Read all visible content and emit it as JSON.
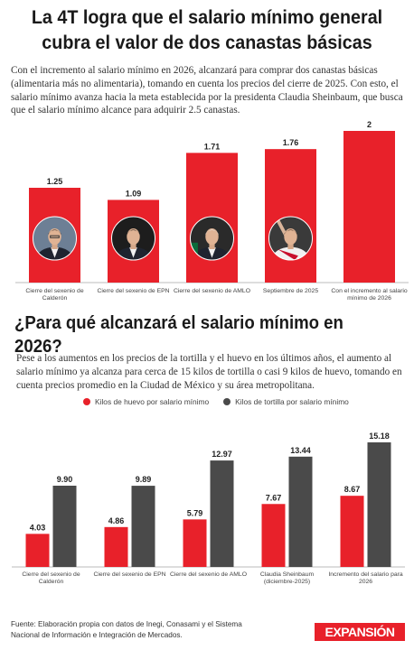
{
  "header": {
    "title_line1": "La 4T logra que el salario mínimo general",
    "title_line2": "cubra el valor de dos canastas básicas",
    "intro": "Con el incremento al salario mínimo en 2026, alcanzará para comprar dos canastas básicas (alimentaria más no alimentaria), tomando en cuenta los precios del cierre de 2025. Con esto, el salario mínimo avanza hacia la meta establecida por la presidenta Claudia Sheinbaum, que busca que el salario mínimo alcance para adquirir 2.5 canastas."
  },
  "section2": {
    "title": "¿Para qué alcanzará el salario mínimo en 2026?",
    "intro": "Pese a los aumentos en los precios de la tortilla y el huevo en los últimos años, el aumento al salario mínimo ya alcanza para cerca de 15 kilos de tortilla o casi 9 kilos de huevo, tomando en cuenta precios promedio en la Ciudad de México y su área metropolitana."
  },
  "footer": {
    "source_line1": "Fuente: Elaboración propia con datos de Inegi, Conasami y el Sistema",
    "source_line2": "Nacional de Información e Integración de Mercados.",
    "logo": "EXPANSIÓN"
  },
  "colors": {
    "red": "#e8212a",
    "dark": "#4a4a4a",
    "axis": "#bbbbbb"
  },
  "chart_data": [
    {
      "type": "bar",
      "title": "",
      "categories": [
        [
          "Cierre del sexenio de",
          "Calderón"
        ],
        [
          "Cierre del sexenio de EPN"
        ],
        [
          "Cierre del sexenio de AMLO"
        ],
        [
          "Septiembre de 2025"
        ],
        [
          "Con el incremento al salario",
          "mínimo de 2026"
        ]
      ],
      "values": [
        1.25,
        1.09,
        1.71,
        1.76,
        2
      ],
      "value_labels": [
        "1.25",
        "1.09",
        "1.71",
        "1.76",
        "2"
      ],
      "portraits": [
        "portrait-calderon",
        "portrait-epn",
        "portrait-amlo",
        "portrait-sheinbaum",
        null
      ],
      "ylim": [
        0,
        2
      ],
      "grid": false,
      "color": "#e8212a"
    },
    {
      "type": "bar",
      "title": "",
      "categories": [
        [
          "Cierre del sexenio de",
          "Calderón"
        ],
        [
          "Cierre del sexenio de EPN"
        ],
        [
          "Cierre del sexenio de AMLO"
        ],
        [
          "Claudia Sheinbaum",
          "(diciembre-2025)"
        ],
        [
          "Incremento del salario para",
          "2026"
        ]
      ],
      "series": [
        {
          "name": "Kilos de huevo por salario mínimo",
          "color": "#e8212a",
          "values": [
            4.03,
            4.86,
            5.79,
            7.67,
            8.67
          ],
          "labels": [
            "4.03",
            "4.86",
            "5.79",
            "7.67",
            "8.67"
          ]
        },
        {
          "name": "Kilos de tortilla por salario mínimo",
          "color": "#4a4a4a",
          "values": [
            9.9,
            9.89,
            12.97,
            13.44,
            15.18
          ],
          "labels": [
            "9.90",
            "9.89",
            "12.97",
            "13.44",
            "15.18"
          ]
        }
      ],
      "ylim": [
        0,
        15.18
      ],
      "grid": false,
      "legend": "top-left"
    }
  ]
}
